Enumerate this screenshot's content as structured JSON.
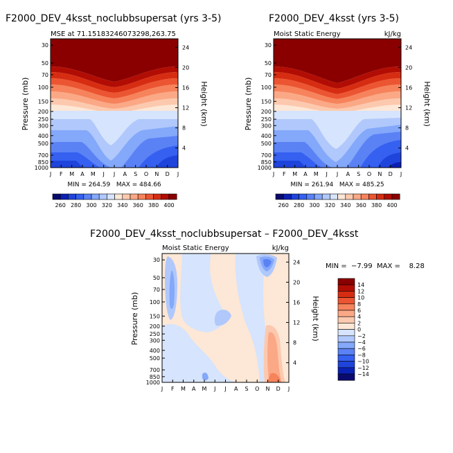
{
  "chart_data": [
    {
      "type": "contour",
      "title": "F2000_DEV_4ksst_noclubbsupersat (yrs 3-5)",
      "subtitle_left": "MSE at 71.15183246073298,263.75",
      "subtitle_right": "",
      "xlabel": "",
      "ylabel": "Pressure (mb)",
      "y2label": "Height (km)",
      "x": [
        "J",
        "F",
        "M",
        "A",
        "M",
        "J",
        "J",
        "A",
        "S",
        "O",
        "N",
        "D",
        "J"
      ],
      "pressure_ticks": [
        30,
        50,
        70,
        100,
        150,
        200,
        250,
        300,
        400,
        500,
        700,
        850,
        1000
      ],
      "height_ticks": [
        24,
        20,
        16,
        12,
        8,
        4
      ],
      "stats": "MIN = 264.59   MAX = 484.66",
      "levels": [
        260,
        270,
        280,
        290,
        300,
        310,
        320,
        330,
        340,
        350,
        360,
        370,
        380,
        390,
        400
      ],
      "colorbar_labels": [
        260,
        280,
        300,
        320,
        340,
        360,
        380,
        400
      ],
      "min": 264.59,
      "max": 484.66
    },
    {
      "type": "contour",
      "title": "F2000_DEV_4ksst (yrs 3-5)",
      "subtitle_left": "Moist Static Energy",
      "subtitle_right": "kJ/kg",
      "xlabel": "",
      "ylabel": "Pressure (mb)",
      "y2label": "Height (km)",
      "x": [
        "J",
        "F",
        "M",
        "A",
        "M",
        "J",
        "J",
        "A",
        "S",
        "O",
        "N",
        "D",
        "J"
      ],
      "pressure_ticks": [
        30,
        50,
        70,
        100,
        150,
        200,
        250,
        300,
        400,
        500,
        700,
        850,
        1000
      ],
      "height_ticks": [
        24,
        20,
        16,
        12,
        8,
        4
      ],
      "stats": "MIN = 261.94   MAX = 485.25",
      "levels": [
        260,
        270,
        280,
        290,
        300,
        310,
        320,
        330,
        340,
        350,
        360,
        370,
        380,
        390,
        400
      ],
      "colorbar_labels": [
        260,
        280,
        300,
        320,
        340,
        360,
        380,
        400
      ],
      "min": 261.94,
      "max": 485.25
    },
    {
      "type": "contour",
      "title": "F2000_DEV_4ksst_noclubbsupersat – F2000_DEV_4ksst",
      "subtitle_left": "Moist Static Energy",
      "subtitle_right": "kJ/kg",
      "xlabel": "",
      "ylabel": "Pressure (mb)",
      "y2label": "Height (km)",
      "x": [
        "J",
        "F",
        "M",
        "A",
        "M",
        "J",
        "J",
        "A",
        "S",
        "O",
        "N",
        "D",
        "J"
      ],
      "pressure_ticks": [
        30,
        50,
        70,
        100,
        150,
        200,
        250,
        300,
        400,
        500,
        700,
        850,
        1000
      ],
      "height_ticks": [
        24,
        20,
        16,
        12,
        8,
        4
      ],
      "stats": "MIN =  −7.99  MAX =    8.28",
      "levels": [
        -14,
        -12,
        -10,
        -8,
        -6,
        -4,
        -2,
        0,
        2,
        4,
        6,
        8,
        10,
        12,
        14
      ],
      "colorbar_labels": [
        "14",
        "12",
        "10",
        "8",
        "6",
        "4",
        "2",
        "0",
        "−2",
        "−4",
        "−6",
        "−8",
        "−10",
        "−12",
        "−14"
      ],
      "min": -7.99,
      "max": 8.28
    }
  ],
  "colors": {
    "palette": [
      "#0a0a6e",
      "#0b21b4",
      "#1f44dc",
      "#3560f0",
      "#5a82f5",
      "#84a8fa",
      "#b0c8fb",
      "#d6e4fd",
      "#fde7d6",
      "#fcc9ae",
      "#fba886",
      "#f6835c",
      "#ec5532",
      "#d62d12",
      "#b20d04",
      "#8a0000"
    ]
  }
}
